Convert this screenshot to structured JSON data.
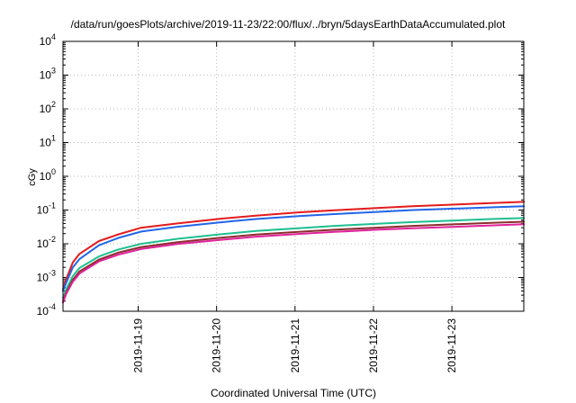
{
  "chart_data": {
    "type": "line",
    "title": "/data/run/goesPlots/archive/2019-11-23/22:00/flux/../bryn/5daysEarthDataAccumulated.plot",
    "xlabel": "Coordinated Universal Time (UTC)",
    "ylabel": "cGy",
    "yscale": "log",
    "ylim": [
      0.0001,
      10000
    ],
    "xlim": [
      "2019-11-18 01:00",
      "2019-11-23 22:00"
    ],
    "x_ticks": [
      "2019-11-19",
      "2019-11-20",
      "2019-11-21",
      "2019-11-22",
      "2019-11-23"
    ],
    "y_ticks": [
      {
        "base": "10",
        "exp": "-4"
      },
      {
        "base": "10",
        "exp": "-3"
      },
      {
        "base": "10",
        "exp": "-2"
      },
      {
        "base": "10",
        "exp": "-1"
      },
      {
        "base": "10",
        "exp": "0"
      },
      {
        "base": "10",
        "exp": "1"
      },
      {
        "base": "10",
        "exp": "2"
      },
      {
        "base": "10",
        "exp": "3"
      },
      {
        "base": "10",
        "exp": "4"
      }
    ],
    "grid": true,
    "x": [
      "2019-11-18 01:00",
      "2019-11-18 02:00",
      "2019-11-18 04:00",
      "2019-11-18 06:00",
      "2019-11-18 12:00",
      "2019-11-18 18:00",
      "2019-11-19 01:00",
      "2019-11-19 12:00",
      "2019-11-20 01:00",
      "2019-11-20 12:00",
      "2019-11-21 01:00",
      "2019-11-21 12:00",
      "2019-11-22 01:00",
      "2019-11-22 12:00",
      "2019-11-23 01:00",
      "2019-11-23 12:00",
      "2019-11-23 22:00"
    ],
    "series": [
      {
        "color": "#e41a1c",
        "values": [
          0.00045,
          0.0009,
          0.0028,
          0.005,
          0.012,
          0.019,
          0.03,
          0.04,
          0.055,
          0.068,
          0.085,
          0.098,
          0.115,
          0.13,
          0.145,
          0.16,
          0.175
        ]
      },
      {
        "color": "#2166e8",
        "values": [
          0.0004,
          0.0007,
          0.002,
          0.0035,
          0.009,
          0.015,
          0.023,
          0.032,
          0.043,
          0.054,
          0.066,
          0.076,
          0.088,
          0.1,
          0.11,
          0.12,
          0.13
        ]
      },
      {
        "color": "#1fbf8f",
        "values": [
          0.00025,
          0.00045,
          0.0011,
          0.0019,
          0.0042,
          0.0068,
          0.01,
          0.014,
          0.019,
          0.024,
          0.029,
          0.034,
          0.039,
          0.044,
          0.049,
          0.054,
          0.058
        ]
      },
      {
        "color": "#8b2d2d",
        "values": [
          0.0002,
          0.00036,
          0.00085,
          0.0015,
          0.0034,
          0.0055,
          0.008,
          0.0112,
          0.015,
          0.0188,
          0.0225,
          0.026,
          0.03,
          0.034,
          0.038,
          0.0415,
          0.045
        ]
      },
      {
        "color": "#e0229a",
        "values": [
          0.00018,
          0.00033,
          0.00075,
          0.0013,
          0.003,
          0.0048,
          0.007,
          0.0098,
          0.013,
          0.0162,
          0.0195,
          0.0225,
          0.026,
          0.029,
          0.032,
          0.035,
          0.038
        ]
      }
    ]
  }
}
